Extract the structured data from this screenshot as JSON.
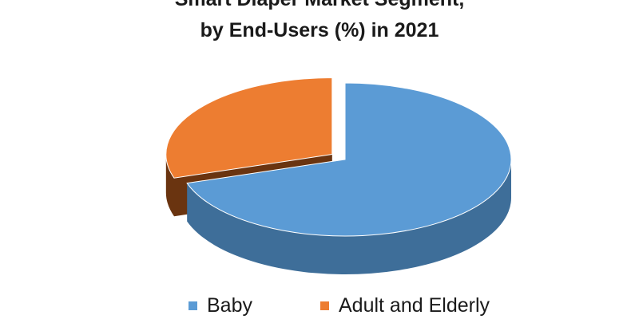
{
  "chart_data": {
    "type": "pie",
    "title_lines": [
      "Smart Diaper Market Segment,",
      "by End-Users (%) in 2021"
    ],
    "categories": [
      "Baby",
      "Adult and Elderly"
    ],
    "values": [
      70,
      30
    ],
    "colors": [
      "#5B9BD5",
      "#ED7D31"
    ],
    "side_colors": [
      "#3E6E99",
      "#6A3410"
    ],
    "exploded": "Adult and Elderly",
    "legend_position": "bottom",
    "style": "3d"
  }
}
